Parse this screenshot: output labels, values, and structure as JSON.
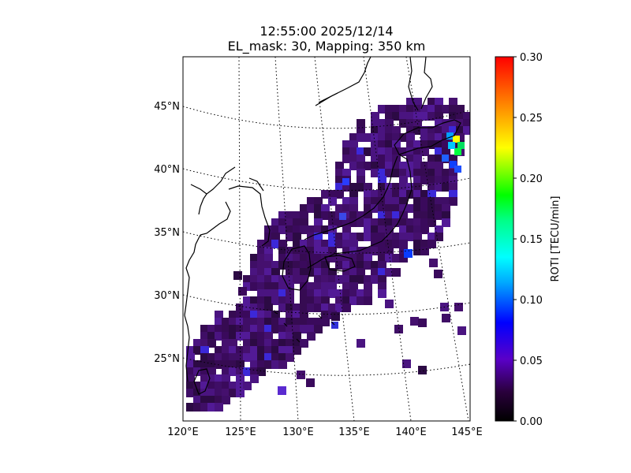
{
  "title": {
    "line1": "12:55:00 2025/12/14",
    "line2": "EL_mask: 30, Mapping: 350 km"
  },
  "map": {
    "lat_ticks": [
      "45°N",
      "40°N",
      "35°N",
      "30°N",
      "25°N"
    ],
    "lon_ticks": [
      "120°E",
      "125°E",
      "130°E",
      "135°E",
      "140°E",
      "145°E"
    ],
    "lon_range": [
      120,
      145
    ],
    "lat_range": [
      20,
      48
    ],
    "background": "#ffffff",
    "coastline_color": "#000000",
    "dominant_roti_value": 0.03
  },
  "colorbar": {
    "label": "ROTI [TECU/min]",
    "ticks": [
      "0.00",
      "0.05",
      "0.10",
      "0.15",
      "0.20",
      "0.25",
      "0.30"
    ],
    "range": [
      0,
      0.3
    ],
    "colormap": [
      "#000000",
      "#3a0055",
      "#5a00c8",
      "#0000ff",
      "#00ffff",
      "#00ff00",
      "#ffff00",
      "#ff8000",
      "#ff0000"
    ]
  }
}
